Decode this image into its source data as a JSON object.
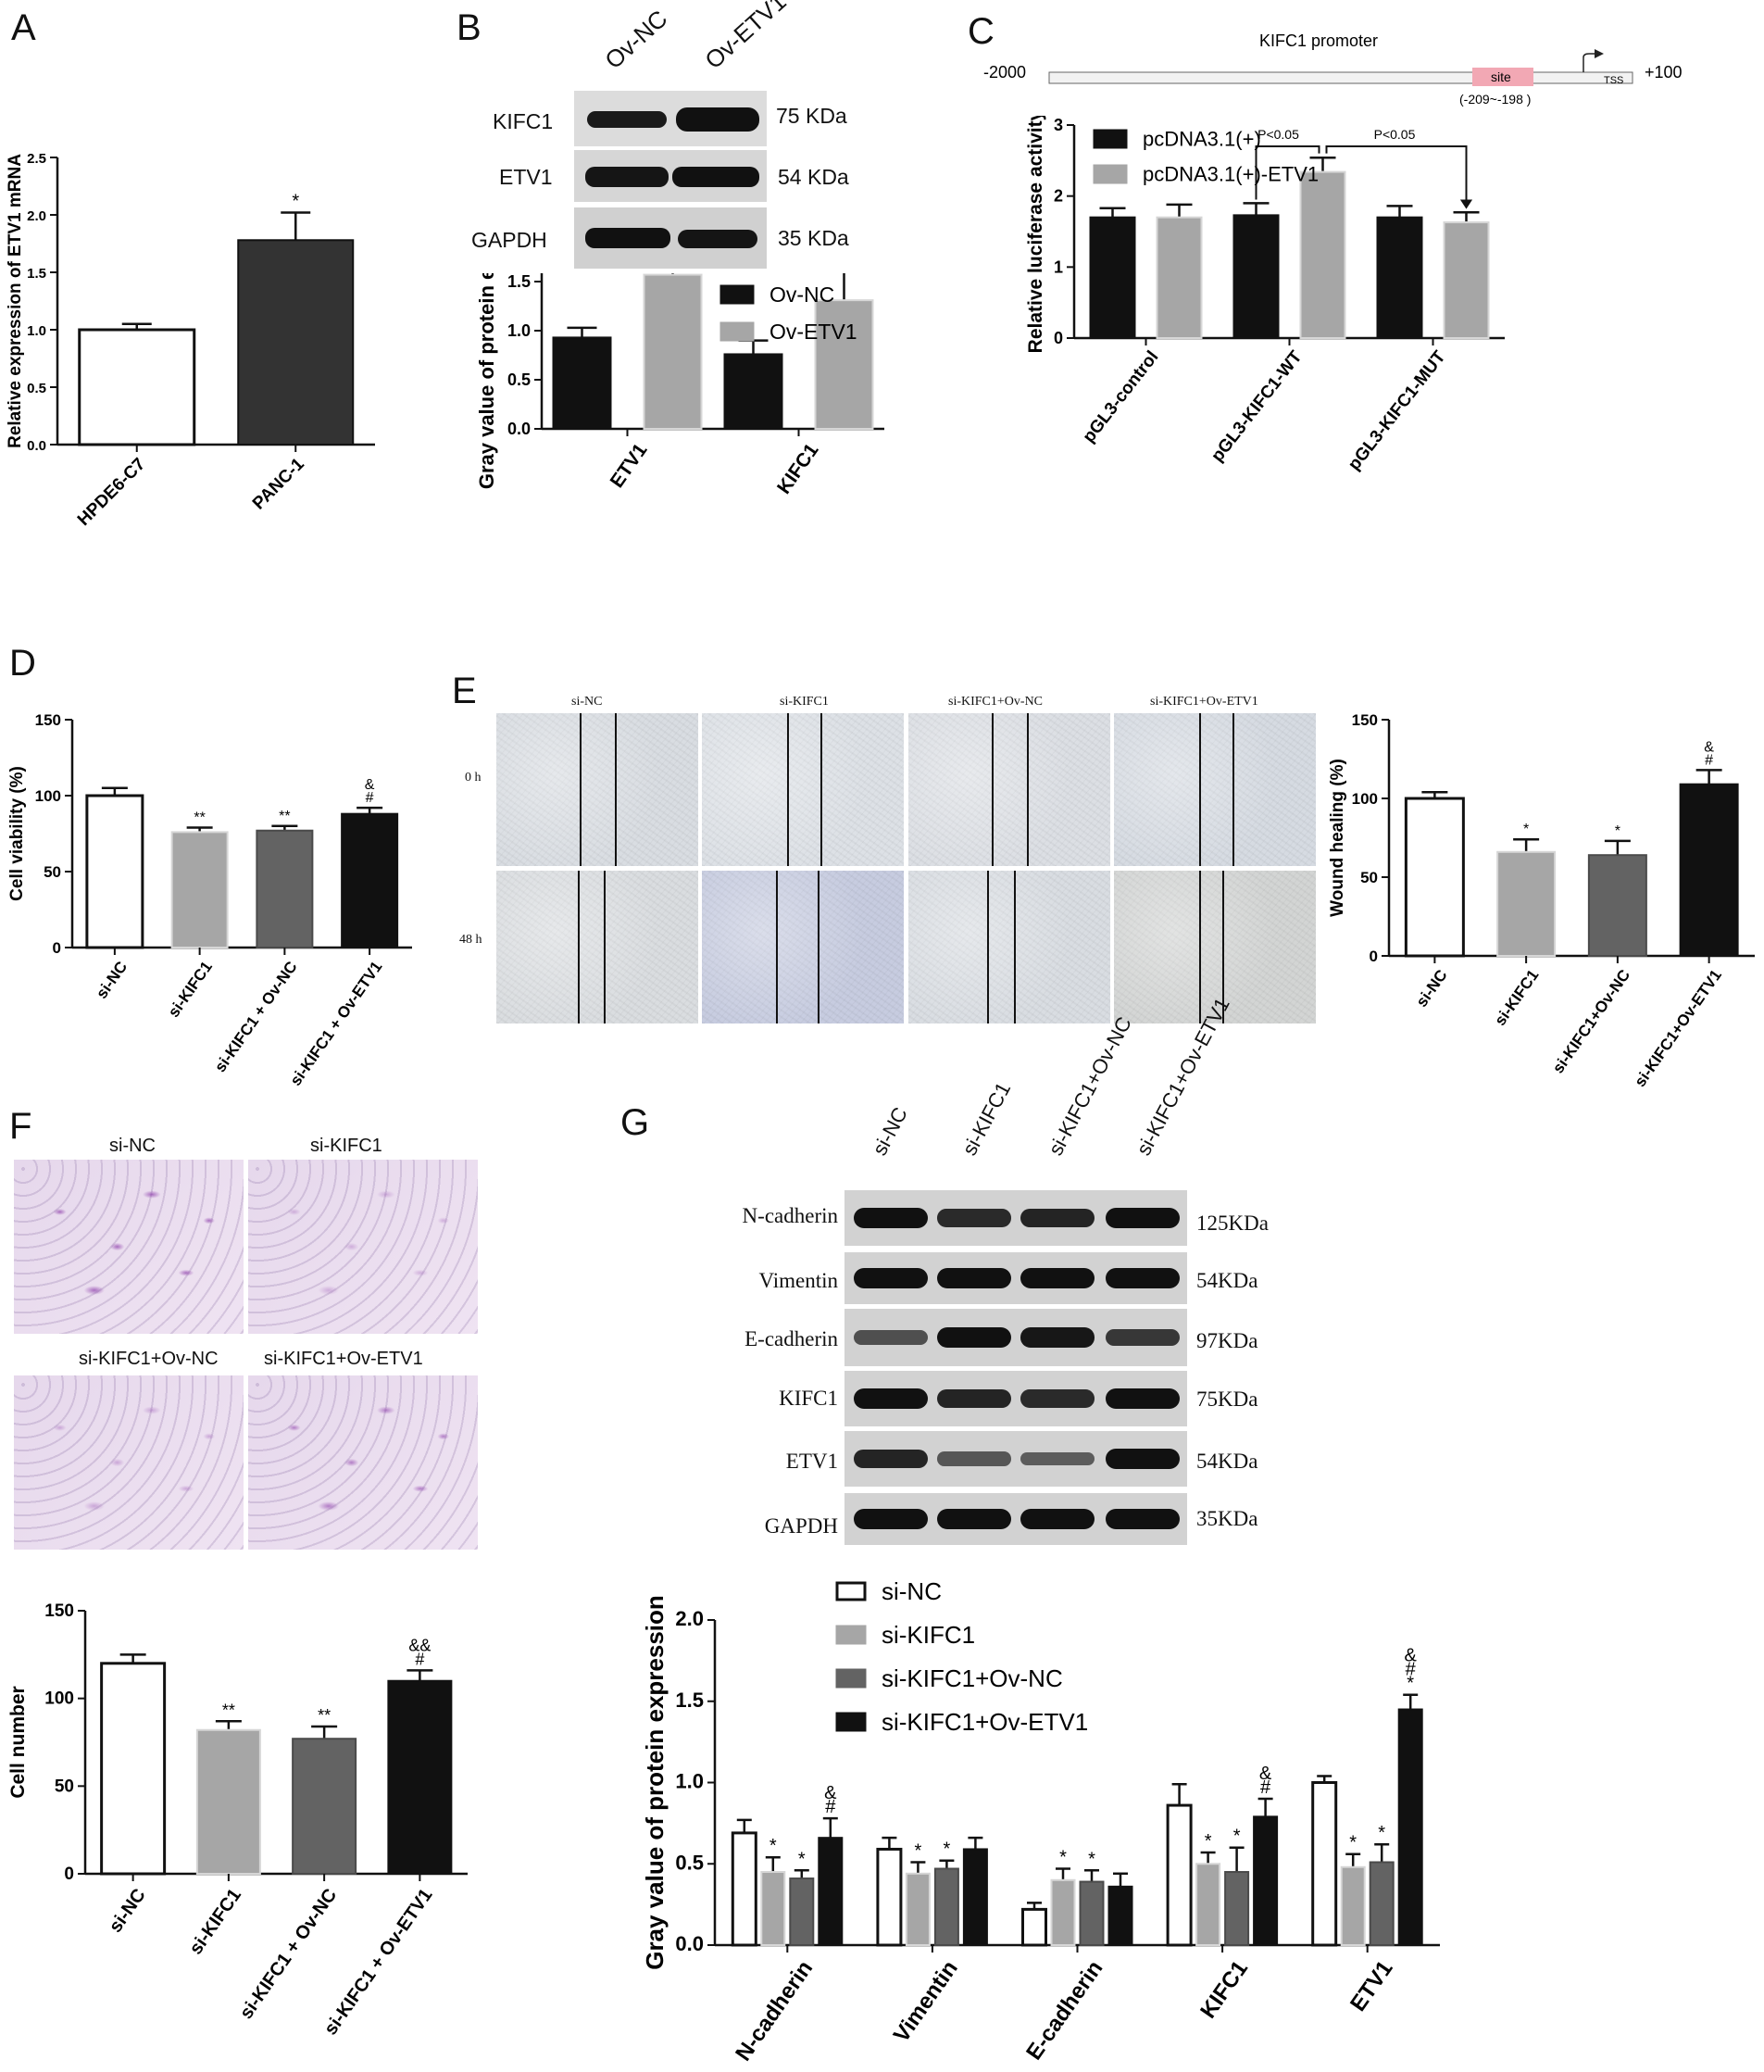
{
  "panels": {
    "A": "A",
    "B": "B",
    "C": "C",
    "D": "D",
    "E": "E",
    "F": "F",
    "G": "G"
  },
  "panel_b_blot": {
    "lanes": [
      "Ov-NC",
      "Ov-ETV1"
    ],
    "rows": [
      {
        "name": "KIFC1",
        "size": "75 KDa"
      },
      {
        "name": "ETV1",
        "size": "54 KDa"
      },
      {
        "name": "GAPDH",
        "size": "35 KDa"
      }
    ]
  },
  "panel_c_promoter": {
    "title": "KIFC1 promoter",
    "left": "-2000",
    "right": "+100",
    "site": "site",
    "site_range": "(-209~-198 )",
    "tss": "TSS"
  },
  "panel_e_images": {
    "groups": [
      "si-NC",
      "si-KIFC1",
      "si-KIFC1+Ov-NC",
      "si-KIFC1+Ov-ETV1"
    ],
    "times": [
      "0 h",
      "48 h"
    ]
  },
  "panel_f_images": {
    "groups": [
      "si-NC",
      "si-KIFC1",
      "si-KIFC1+Ov-NC",
      "si-KIFC1+Ov-ETV1"
    ]
  },
  "panel_g_blot": {
    "lanes": [
      "si-NC",
      "si-KIFC1",
      "si-KIFC1+Ov-NC",
      "si-KIFC1+Ov-ETV1"
    ],
    "rows": [
      {
        "name": "N-cadherin",
        "size": "125KDa"
      },
      {
        "name": "Vimentin",
        "size": "54KDa"
      },
      {
        "name": "E-cadherin",
        "size": "97KDa"
      },
      {
        "name": "KIFC1",
        "size": "75KDa"
      },
      {
        "name": "ETV1",
        "size": "54KDa"
      },
      {
        "name": "GAPDH",
        "size": "35KDa"
      }
    ]
  },
  "chart_data": [
    {
      "id": "A",
      "type": "bar",
      "categories": [
        "HPDE6-C7",
        "PANC-1"
      ],
      "values": [
        1.0,
        1.78
      ],
      "errors": [
        0.05,
        0.24
      ],
      "ylabel": "Relative expression of ETV1 mRNA",
      "ylim": [
        0,
        2.5
      ],
      "yticks": [
        "0.0",
        "0.5",
        "1.0",
        "1.5",
        "2.0",
        "2.5"
      ],
      "annotations": [
        "",
        "*"
      ],
      "colors": [
        "#ffffff",
        "#333333"
      ]
    },
    {
      "id": "B",
      "type": "bar",
      "categories": [
        "ETV1",
        "KIFC1"
      ],
      "series": [
        {
          "name": "Ov-NC",
          "values": [
            0.93,
            0.76
          ],
          "errors": [
            0.1,
            0.14
          ],
          "color": "#111111",
          "stars": [
            "",
            ""
          ]
        },
        {
          "name": "Ov-ETV1",
          "values": [
            1.57,
            1.31
          ],
          "errors": [
            0.23,
            0.31
          ],
          "color": "#a6a6a6",
          "stars": [
            "*",
            "*"
          ]
        }
      ],
      "ylabel": "Gray value of protein expression",
      "ylim": [
        0,
        2.0
      ],
      "yticks": [
        "0.0",
        "0.5",
        "1.0",
        "1.5",
        "2.0"
      ]
    },
    {
      "id": "C",
      "type": "bar",
      "categories": [
        "pGL3-control",
        "pGL3-KIFC1-WT",
        "pGL3-KIFC1-MUT"
      ],
      "series": [
        {
          "name": "pcDNA3.1(+)",
          "values": [
            1.7,
            1.73,
            1.7
          ],
          "errors": [
            0.13,
            0.17,
            0.16
          ],
          "color": "#111111"
        },
        {
          "name": "pcDNA3.1(+)-ETV1",
          "values": [
            1.7,
            2.34,
            1.63
          ],
          "errors": [
            0.18,
            0.2,
            0.14
          ],
          "color": "#a6a6a6"
        }
      ],
      "ylabel": "Relative luciferase activity",
      "ylim": [
        0,
        3
      ],
      "yticks": [
        "0",
        "1",
        "2",
        "3"
      ],
      "comparisons": [
        "P<0.05",
        "P<0.05"
      ]
    },
    {
      "id": "D",
      "type": "bar",
      "categories": [
        "si-NC",
        "si-KIFC1",
        "si-KIFC1 + Ov-NC",
        "si-KIFC1 + Ov-ETV1"
      ],
      "values": [
        100,
        76,
        77,
        88
      ],
      "errors": [
        5,
        3,
        3,
        4
      ],
      "annotations": [
        [],
        [
          "**"
        ],
        [
          "**"
        ],
        [
          "&",
          "#"
        ]
      ],
      "ylabel": "Cell viability (%)",
      "ylim": [
        0,
        150
      ],
      "yticks": [
        "0",
        "50",
        "100",
        "150"
      ],
      "colors": [
        "#ffffff",
        "#a6a6a6",
        "#636363",
        "#111111"
      ]
    },
    {
      "id": "E",
      "type": "bar",
      "categories": [
        "si-NC",
        "si-KIFC1",
        "si-KIFC1+Ov-NC",
        "si-KIFC1+Ov-ETV1"
      ],
      "values": [
        100,
        66,
        64,
        109
      ],
      "errors": [
        4,
        8,
        9,
        9
      ],
      "annotations": [
        [],
        [
          "*"
        ],
        [
          "*"
        ],
        [
          "&",
          "#"
        ]
      ],
      "ylabel": "Wound healing (%)",
      "ylim": [
        0,
        150
      ],
      "yticks": [
        "0",
        "50",
        "100",
        "150"
      ],
      "colors": [
        "#ffffff",
        "#a6a6a6",
        "#636363",
        "#111111"
      ]
    },
    {
      "id": "F",
      "type": "bar",
      "categories": [
        "si-NC",
        "si-KIFC1",
        "si-KIFC1 + Ov-NC",
        "si-KIFC1 + Ov-ETV1"
      ],
      "values": [
        120,
        82,
        77,
        110
      ],
      "errors": [
        5,
        5,
        7,
        6
      ],
      "annotations": [
        [],
        [
          "**"
        ],
        [
          "**"
        ],
        [
          "&&",
          "#"
        ]
      ],
      "ylabel": "Cell number",
      "ylim": [
        0,
        150
      ],
      "yticks": [
        "0",
        "50",
        "100",
        "150"
      ],
      "colors": [
        "#ffffff",
        "#a6a6a6",
        "#636363",
        "#111111"
      ]
    },
    {
      "id": "G",
      "type": "bar",
      "categories": [
        "N-cadherin",
        "Vimentin",
        "E-cadherin",
        "KIFC1",
        "ETV1"
      ],
      "series": [
        {
          "name": "si-NC",
          "values": [
            0.69,
            0.59,
            0.22,
            0.86,
            1.0
          ],
          "errors": [
            0.08,
            0.07,
            0.04,
            0.13,
            0.04
          ],
          "color": "#ffffff",
          "stars": [
            [],
            [],
            [],
            [],
            []
          ]
        },
        {
          "name": "si-KIFC1",
          "values": [
            0.45,
            0.44,
            0.4,
            0.5,
            0.48
          ],
          "errors": [
            0.09,
            0.07,
            0.07,
            0.07,
            0.08
          ],
          "color": "#a6a6a6",
          "stars": [
            [
              "*"
            ],
            [
              "*"
            ],
            [
              "*"
            ],
            [
              "*"
            ],
            [
              "*"
            ]
          ]
        },
        {
          "name": "si-KIFC1+Ov-NC",
          "values": [
            0.41,
            0.47,
            0.39,
            0.45,
            0.51
          ],
          "errors": [
            0.05,
            0.05,
            0.07,
            0.15,
            0.11
          ],
          "color": "#636363",
          "stars": [
            [
              "*"
            ],
            [
              "*"
            ],
            [
              "*"
            ],
            [
              "*"
            ],
            [
              "*"
            ]
          ]
        },
        {
          "name": "si-KIFC1+Ov-ETV1",
          "values": [
            0.66,
            0.59,
            0.36,
            0.79,
            1.45
          ],
          "errors": [
            0.12,
            0.07,
            0.08,
            0.11,
            0.09
          ],
          "color": "#111111",
          "stars": [
            [
              "&",
              "#"
            ],
            [],
            [],
            [
              "&",
              "#"
            ],
            [
              "&",
              "#",
              "*"
            ]
          ]
        }
      ],
      "ylabel": "Gray value of protein expression",
      "ylim": [
        0,
        2.0
      ],
      "yticks": [
        "0.0",
        "0.5",
        "1.0",
        "1.5",
        "2.0"
      ]
    }
  ]
}
